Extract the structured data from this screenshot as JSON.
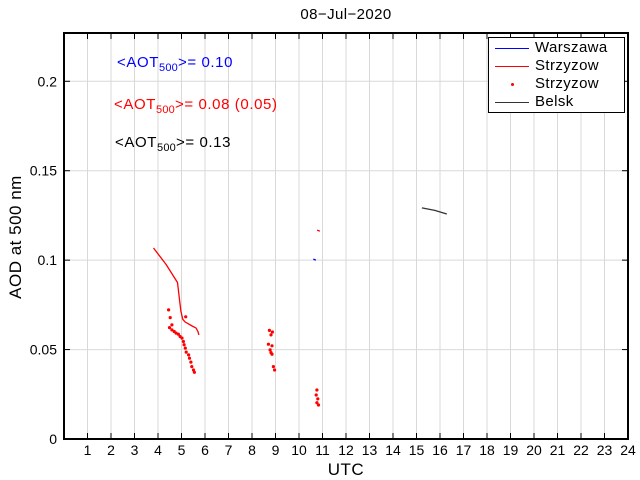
{
  "chart_data": {
    "type": "line+scatter",
    "title": "08−Jul−2020",
    "xlabel": "UTC",
    "ylabel": "AOD at 500 nm",
    "xlim": [
      0,
      24
    ],
    "ylim": [
      0,
      0.227
    ],
    "grid": true,
    "xticks": [
      1,
      2,
      3,
      4,
      5,
      6,
      7,
      8,
      9,
      10,
      11,
      12,
      13,
      14,
      15,
      16,
      17,
      18,
      19,
      20,
      21,
      22,
      23,
      24
    ],
    "yticks": [
      0,
      0.05,
      0.1,
      0.15,
      0.2
    ],
    "ytick_labels": [
      "0",
      "0.05",
      "0.1",
      "0.15",
      "0.2"
    ],
    "colors": {
      "grid": "#d9d9d9",
      "axis": "#000000"
    },
    "legend": {
      "position": "top-right"
    },
    "series": [
      {
        "name": "warszawa-line",
        "label": "Warszawa",
        "type": "line",
        "color": "#0000ff",
        "segments": [
          [
            [
              10.61,
              0.1006
            ],
            [
              10.72,
              0.1
            ]
          ]
        ]
      },
      {
        "name": "strzyzow-line",
        "label": "Strzyzow",
        "type": "line",
        "color": "#ff0000",
        "segments": [
          [
            [
              3.81,
              0.1068
            ],
            [
              4.35,
              0.0975
            ],
            [
              4.83,
              0.0875
            ],
            [
              4.97,
              0.0718
            ],
            [
              5.05,
              0.067
            ],
            [
              5.15,
              0.0655
            ],
            [
              5.45,
              0.0632
            ],
            [
              5.62,
              0.062
            ],
            [
              5.7,
              0.06
            ],
            [
              5.74,
              0.0582
            ]
          ],
          [
            [
              10.77,
              0.1168
            ],
            [
              10.89,
              0.1162
            ]
          ]
        ]
      },
      {
        "name": "strzyzow-dots",
        "label": "Strzyzow",
        "type": "scatter",
        "color": "#ff0000",
        "points": [
          [
            4.45,
            0.0722
          ],
          [
            4.52,
            0.0679
          ],
          [
            4.49,
            0.0623
          ],
          [
            4.59,
            0.0638
          ],
          [
            4.59,
            0.061
          ],
          [
            4.69,
            0.0601
          ],
          [
            4.77,
            0.0592
          ],
          [
            4.87,
            0.0586
          ],
          [
            4.94,
            0.0573
          ],
          [
            5.02,
            0.0564
          ],
          [
            5.08,
            0.0545
          ],
          [
            5.11,
            0.0527
          ],
          [
            5.16,
            0.0508
          ],
          [
            5.18,
            0.0683
          ],
          [
            5.2,
            0.0486
          ],
          [
            5.3,
            0.047
          ],
          [
            5.34,
            0.0452
          ],
          [
            5.4,
            0.043
          ],
          [
            5.44,
            0.0405
          ],
          [
            5.51,
            0.0386
          ],
          [
            5.55,
            0.0373
          ],
          [
            8.74,
            0.0607
          ],
          [
            8.87,
            0.0598
          ],
          [
            8.81,
            0.0582
          ],
          [
            8.7,
            0.053
          ],
          [
            8.85,
            0.0521
          ],
          [
            8.77,
            0.0498
          ],
          [
            8.81,
            0.0483
          ],
          [
            8.85,
            0.0474
          ],
          [
            8.91,
            0.0405
          ],
          [
            8.96,
            0.0386
          ],
          [
            10.76,
            0.0274
          ],
          [
            10.73,
            0.0246
          ],
          [
            10.8,
            0.0224
          ],
          [
            10.76,
            0.0203
          ],
          [
            10.83,
            0.019
          ]
        ]
      },
      {
        "name": "belsk-line",
        "label": "Belsk",
        "type": "line",
        "color": "#333333",
        "segments": [
          [
            [
              15.23,
              0.1292
            ],
            [
              15.78,
              0.1278
            ],
            [
              16.29,
              0.1258
            ]
          ]
        ]
      }
    ],
    "annotations": [
      {
        "color": "#0000ff",
        "prefix": "<AOT",
        "sub": "500",
        "suffix": ">= 0.10"
      },
      {
        "color": "#ff0000",
        "prefix": "<AOT",
        "sub": "500",
        "suffix": ">= 0.08 (0.05)"
      },
      {
        "color": "#000000",
        "prefix": "<AOT",
        "sub": "500",
        "suffix": ">= 0.13"
      }
    ]
  }
}
